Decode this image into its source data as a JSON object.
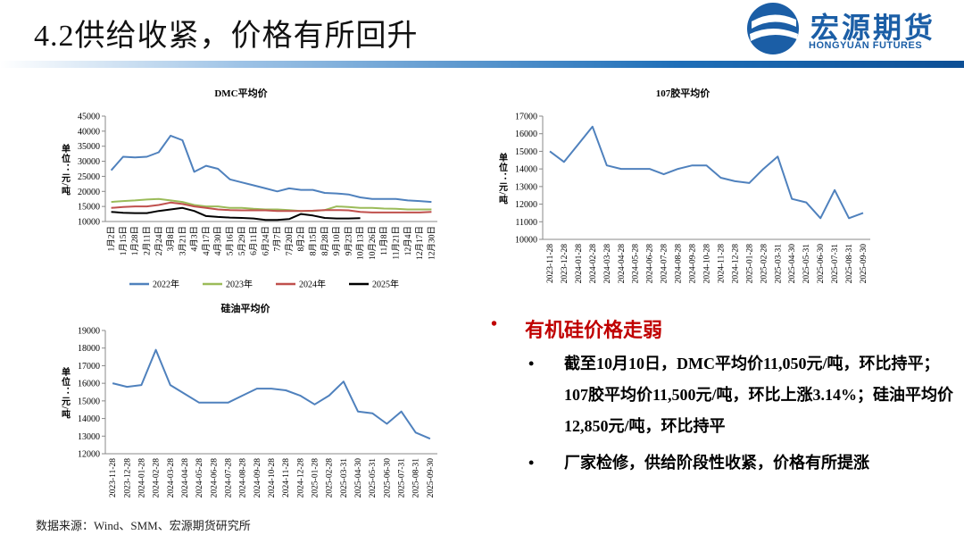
{
  "header": {
    "title": "4.2供给收紧，价格有所回升",
    "logo_cn": "宏源期货",
    "logo_en": "HONGYUAN FUTURES"
  },
  "chart_data": [
    {
      "type": "line",
      "title": "DMC平均价",
      "y_label": "单位：元/吨",
      "categories": [
        "1月2日",
        "1月15日",
        "1月28日",
        "2月11日",
        "2月24日",
        "3月8日",
        "3月21日",
        "4月3日",
        "4月17日",
        "4月30日",
        "5月16日",
        "5月29日",
        "6月11日",
        "6月24日",
        "7月7日",
        "7月20日",
        "8月2日",
        "8月15日",
        "8月28日",
        "9月10日",
        "9月23日",
        "10月13日",
        "10月26日",
        "11月8日",
        "11月21日",
        "12月4日",
        "12月17日",
        "12月30日"
      ],
      "series": [
        {
          "name": "2022年",
          "color": "#4f81bd",
          "values": [
            27000,
            31500,
            31300,
            31500,
            33000,
            38500,
            37000,
            26500,
            28500,
            27500,
            24000,
            23000,
            22000,
            21000,
            20000,
            21000,
            20500,
            20500,
            19500,
            19300,
            19000,
            18000,
            17500,
            17500,
            17500,
            17000,
            16800,
            16500
          ]
        },
        {
          "name": "2023年",
          "color": "#9bbb59",
          "values": [
            16500,
            16800,
            17000,
            17300,
            17500,
            17000,
            16500,
            15500,
            15000,
            15000,
            14500,
            14500,
            14200,
            14000,
            14000,
            13800,
            13500,
            13500,
            13800,
            15000,
            14800,
            14500,
            14500,
            14300,
            14200,
            14000,
            14000,
            14000
          ]
        },
        {
          "name": "2024年",
          "color": "#c0504d",
          "values": [
            14500,
            14800,
            15000,
            15000,
            15500,
            16300,
            15800,
            15000,
            14500,
            14000,
            13800,
            13700,
            13700,
            13700,
            13500,
            13500,
            13500,
            13600,
            13800,
            13800,
            13700,
            13200,
            13000,
            13000,
            13000,
            13000,
            13000,
            13200
          ]
        },
        {
          "name": "2025年",
          "color": "#000000",
          "values": [
            13200,
            12900,
            12800,
            12800,
            13500,
            14000,
            14500,
            13500,
            11800,
            11500,
            11300,
            11200,
            11000,
            10500,
            10500,
            10800,
            12500,
            12000,
            11200,
            11000,
            11000,
            11100,
            null,
            null,
            null,
            null,
            null,
            null
          ]
        }
      ],
      "ylim": [
        10000,
        45000
      ],
      "yticks": [
        10000,
        15000,
        20000,
        25000,
        30000,
        35000,
        40000,
        45000
      ],
      "legend": "bottom"
    },
    {
      "type": "line",
      "title": "107胶平均价",
      "y_label": "单位：元/吨",
      "categories": [
        "2023-11-28",
        "2023-12-28",
        "2024-01-28",
        "2024-02-28",
        "2024-03-28",
        "2024-04-28",
        "2024-05-28",
        "2024-06-28",
        "2024-07-28",
        "2024-08-28",
        "2024-09-28",
        "2024-10-28",
        "2024-11-28",
        "2024-12-28",
        "2025-01-28",
        "2025-02-28",
        "2025-03-31",
        "2025-04-30",
        "2025-05-31",
        "2025-06-30",
        "2025-07-31",
        "2025-08-31",
        "2025-09-30"
      ],
      "color": "#4f81bd",
      "values": [
        15000,
        14400,
        15400,
        16400,
        14200,
        14000,
        14000,
        14000,
        13700,
        14000,
        14200,
        14200,
        13500,
        13300,
        13200,
        14000,
        14700,
        12300,
        12100,
        11200,
        12800,
        11200,
        11500
      ],
      "ylim": [
        10000,
        17000
      ],
      "yticks": [
        10000,
        11000,
        12000,
        13000,
        14000,
        15000,
        16000,
        17000
      ]
    },
    {
      "type": "line",
      "title": "硅油平均价",
      "y_label": "单位：元/吨",
      "categories": [
        "2023-11-28",
        "2023-12-28",
        "2024-01-28",
        "2024-02-28",
        "2024-03-28",
        "2024-04-28",
        "2024-05-28",
        "2024-06-28",
        "2024-07-28",
        "2024-08-28",
        "2024-09-28",
        "2024-10-28",
        "2024-11-28",
        "2024-12-28",
        "2025-01-28",
        "2025-02-28",
        "2025-03-31",
        "2025-04-30",
        "2025-05-31",
        "2025-06-30",
        "2025-07-31",
        "2025-08-31",
        "2025-09-30"
      ],
      "color": "#4f81bd",
      "values": [
        16000,
        15800,
        15900,
        17900,
        15900,
        15400,
        14900,
        14900,
        14900,
        15300,
        15700,
        15700,
        15600,
        15300,
        14800,
        15300,
        16100,
        14400,
        14300,
        13700,
        14400,
        13200,
        12850
      ],
      "ylim": [
        12000,
        19000
      ],
      "yticks": [
        12000,
        13000,
        14000,
        15000,
        16000,
        17000,
        18000,
        19000
      ]
    }
  ],
  "bullets": {
    "heading": "有机硅价格走弱",
    "items": [
      "截至10月10日，DMC平均价11,050元/吨，环比持平；107胶平均价11,500元/吨，环比上涨3.14%；硅油平均价12,850元/吨，环比持平",
      "厂家检修，供给阶段性收紧，价格有所提涨"
    ]
  },
  "source": "数据来源：Wind、SMM、宏源期货研究所"
}
